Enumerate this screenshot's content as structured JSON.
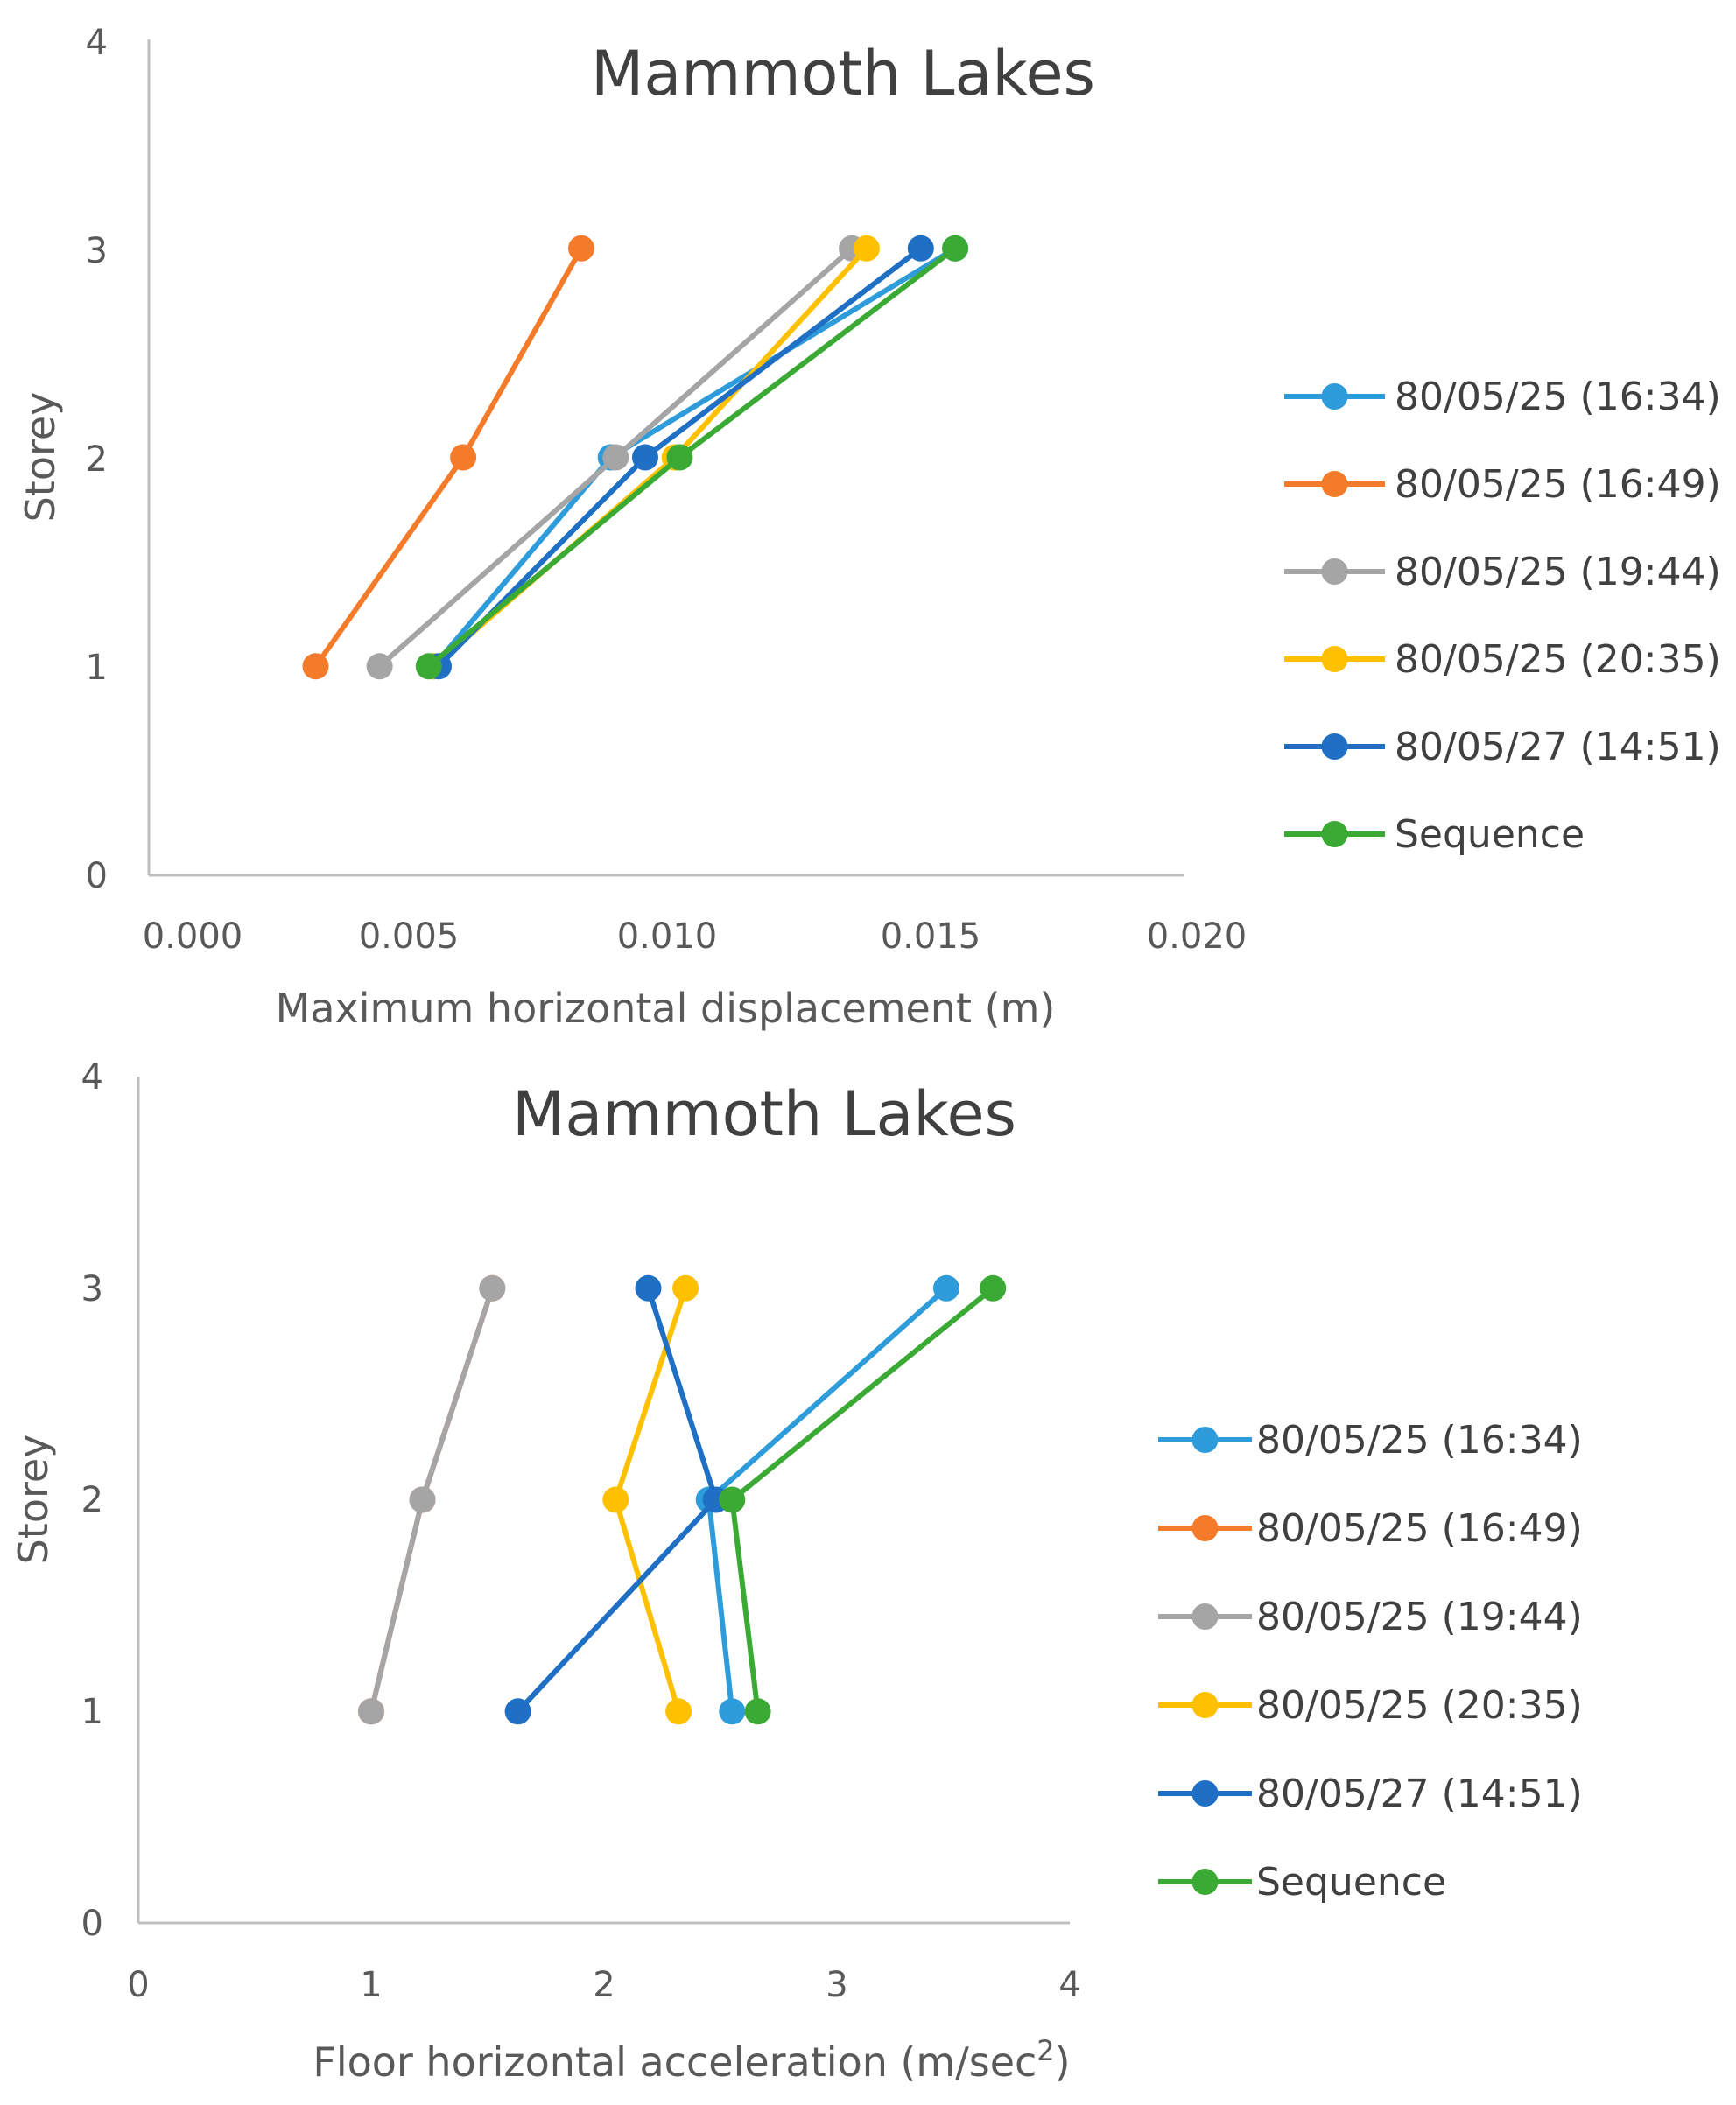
{
  "chart_data": [
    {
      "type": "line",
      "title": "Mammoth Lakes",
      "xlabel": "Maximum horizontal displacement (m)",
      "ylabel": "Storey",
      "xlim": [
        0,
        0.02
      ],
      "ylim": [
        0,
        4
      ],
      "x_ticks": [
        "0.000",
        "0.005",
        "0.010",
        "0.015",
        "0.020"
      ],
      "y_ticks": [
        "0",
        "1",
        "2",
        "3",
        "4"
      ],
      "grid": false,
      "legend_position": "right",
      "series": [
        {
          "name": "80/05/25 (16:34)",
          "color": "#2E9BDA",
          "x": [
            0.0049,
            0.0085,
            0.0155
          ],
          "y": [
            1,
            2,
            3
          ]
        },
        {
          "name": "80/05/25 (16:49)",
          "color": "#F47B2A",
          "x": [
            0.0025,
            0.0055,
            0.0079
          ],
          "y": [
            1,
            2,
            3
          ]
        },
        {
          "name": "80/05/25 (19:44)",
          "color": "#A5A5A5",
          "x": [
            0.0038,
            0.0086,
            0.0134
          ],
          "y": [
            1,
            2,
            3
          ]
        },
        {
          "name": "80/05/25 (20:35)",
          "color": "#FFC000",
          "x": [
            0.0049,
            0.0098,
            0.0137
          ],
          "y": [
            1,
            2,
            3
          ]
        },
        {
          "name": "80/05/27 (14:51)",
          "color": "#1F6FC5",
          "x": [
            0.005,
            0.0092,
            0.0148
          ],
          "y": [
            1,
            2,
            3
          ]
        },
        {
          "name": "Sequence",
          "color": "#3BAA34",
          "x": [
            0.0048,
            0.0099,
            0.0155
          ],
          "y": [
            1,
            2,
            3
          ]
        }
      ]
    },
    {
      "type": "line",
      "title": "Mammoth Lakes",
      "xlabel": "Floor horizontal acceleration (m/sec",
      "xlabel_sup": "2",
      "xlabel_end": ")",
      "ylabel": "Storey",
      "xlim": [
        0,
        4
      ],
      "ylim": [
        0,
        4
      ],
      "x_ticks": [
        "0",
        "1",
        "2",
        "3",
        "4"
      ],
      "y_ticks": [
        "0",
        "1",
        "2",
        "3",
        "4"
      ],
      "grid": false,
      "legend_position": "right",
      "series": [
        {
          "name": "80/05/25 (16:34)",
          "color": "#2E9BDA",
          "x": [
            2.55,
            2.45,
            3.47
          ],
          "y": [
            1,
            2,
            3
          ]
        },
        {
          "name": "80/05/25 (16:49)",
          "color": "#F47B2A",
          "x": [
            1.0,
            1.22,
            1.52
          ],
          "y": [
            1,
            2,
            3
          ]
        },
        {
          "name": "80/05/25 (19:44)",
          "color": "#A5A5A5",
          "x": [
            1.0,
            1.22,
            1.52
          ],
          "y": [
            1,
            2,
            3
          ]
        },
        {
          "name": "80/05/25 (20:35)",
          "color": "#FFC000",
          "x": [
            2.32,
            2.05,
            2.35
          ],
          "y": [
            1,
            2,
            3
          ]
        },
        {
          "name": "80/05/27 (14:51)",
          "color": "#1F6FC5",
          "x": [
            1.63,
            2.48,
            2.19
          ],
          "y": [
            1,
            2,
            3
          ]
        },
        {
          "name": "Sequence",
          "color": "#3BAA34",
          "x": [
            2.66,
            2.55,
            3.67
          ],
          "y": [
            1,
            2,
            3
          ]
        }
      ]
    }
  ]
}
